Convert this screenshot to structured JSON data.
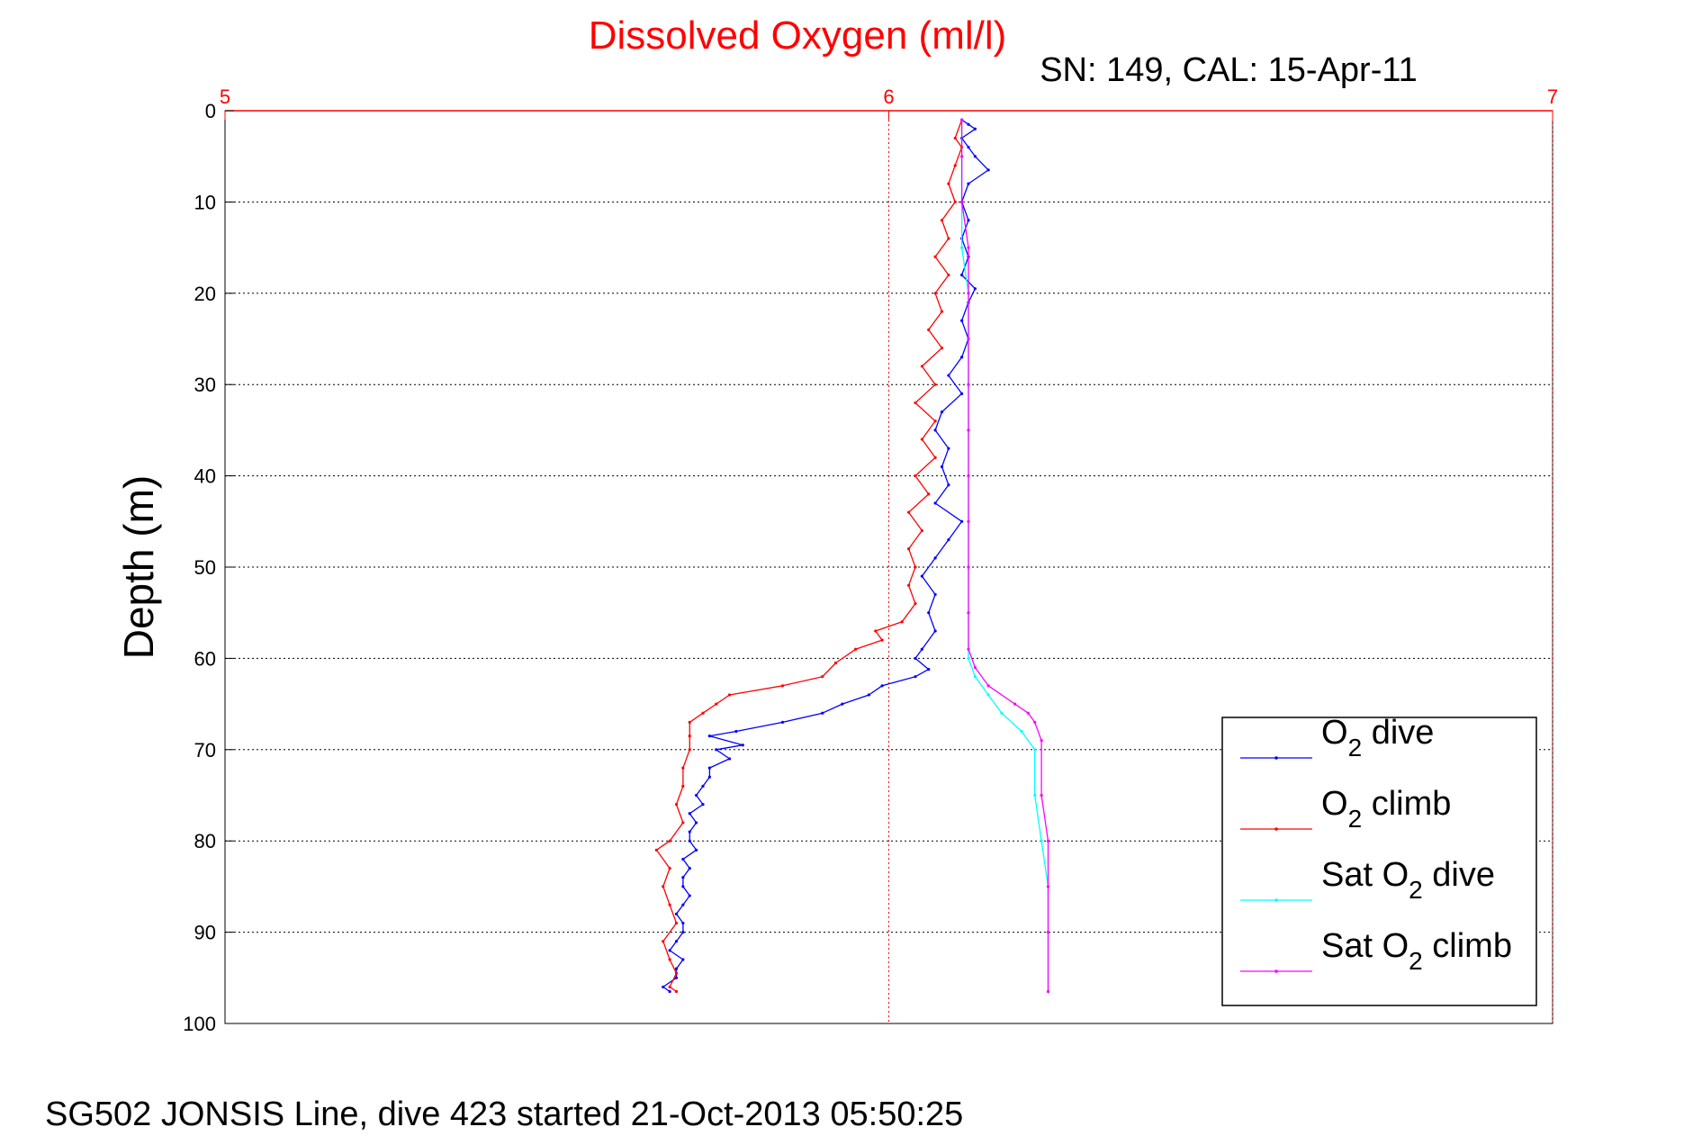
{
  "chart_data": {
    "type": "line",
    "title": "Dissolved Oxygen (ml/l)",
    "subtitle": "SN: 149, CAL: 15-Apr-11",
    "ylabel": "Depth (m)",
    "xlim": [
      5,
      7
    ],
    "ylim": [
      0,
      100
    ],
    "y_reversed": true,
    "x_axis_position": "top",
    "x_ticks": [
      "5",
      "6",
      "7"
    ],
    "y_ticks": [
      "0",
      "10",
      "20",
      "30",
      "40",
      "50",
      "60",
      "70",
      "80",
      "90",
      "100"
    ],
    "grid": true,
    "legend_position": "bottom-right",
    "footer": "SG502 JONSIS Line, dive 423 started 21-Oct-2013 05:50:25",
    "colors": {
      "title": "#ff0000",
      "x_axis": "#ff0000",
      "o2_dive": "#0000ff",
      "o2_climb": "#ff0000",
      "sat_o2_dive": "#00ffff",
      "sat_o2_climb": "#ff00ff"
    },
    "series": [
      {
        "key": "o2_dive",
        "legend_main": "O",
        "legend_sub": "2",
        "legend_rest": " dive",
        "color": "#0000ff",
        "points": [
          [
            6.11,
            1
          ],
          [
            6.12,
            1.5
          ],
          [
            6.13,
            2
          ],
          [
            6.11,
            3
          ],
          [
            6.12,
            4
          ],
          [
            6.13,
            5
          ],
          [
            6.15,
            6.5
          ],
          [
            6.12,
            8
          ],
          [
            6.11,
            10
          ],
          [
            6.12,
            12
          ],
          [
            6.11,
            14
          ],
          [
            6.12,
            16
          ],
          [
            6.11,
            18
          ],
          [
            6.13,
            19.5
          ],
          [
            6.12,
            21
          ],
          [
            6.11,
            23
          ],
          [
            6.12,
            25
          ],
          [
            6.11,
            27
          ],
          [
            6.09,
            29
          ],
          [
            6.11,
            31
          ],
          [
            6.08,
            33
          ],
          [
            6.07,
            35
          ],
          [
            6.09,
            37
          ],
          [
            6.08,
            39
          ],
          [
            6.09,
            41
          ],
          [
            6.07,
            43
          ],
          [
            6.11,
            45
          ],
          [
            6.09,
            47
          ],
          [
            6.07,
            49
          ],
          [
            6.05,
            51
          ],
          [
            6.07,
            53
          ],
          [
            6.06,
            55
          ],
          [
            6.07,
            57
          ],
          [
            6.05,
            59
          ],
          [
            6.04,
            60
          ],
          [
            6.06,
            61.2
          ],
          [
            6.04,
            62
          ],
          [
            5.99,
            63
          ],
          [
            5.97,
            64
          ],
          [
            5.93,
            65
          ],
          [
            5.9,
            66
          ],
          [
            5.84,
            67
          ],
          [
            5.77,
            68
          ],
          [
            5.73,
            68.5
          ],
          [
            5.78,
            69.5
          ],
          [
            5.74,
            70
          ],
          [
            5.76,
            71
          ],
          [
            5.73,
            72
          ],
          [
            5.73,
            73
          ],
          [
            5.72,
            74
          ],
          [
            5.71,
            75
          ],
          [
            5.72,
            76
          ],
          [
            5.7,
            77
          ],
          [
            5.71,
            78
          ],
          [
            5.7,
            79
          ],
          [
            5.7,
            80
          ],
          [
            5.71,
            81
          ],
          [
            5.69,
            82
          ],
          [
            5.7,
            83
          ],
          [
            5.69,
            84
          ],
          [
            5.69,
            85
          ],
          [
            5.7,
            86
          ],
          [
            5.69,
            87
          ],
          [
            5.68,
            88
          ],
          [
            5.69,
            89
          ],
          [
            5.69,
            90
          ],
          [
            5.68,
            91
          ],
          [
            5.67,
            92
          ],
          [
            5.69,
            93
          ],
          [
            5.68,
            94
          ],
          [
            5.68,
            95
          ],
          [
            5.66,
            96
          ],
          [
            5.67,
            96.5
          ]
        ]
      },
      {
        "key": "o2_climb",
        "legend_main": "O",
        "legend_sub": "2",
        "legend_rest": " climb",
        "color": "#ff0000",
        "points": [
          [
            6.11,
            1
          ],
          [
            6.1,
            3
          ],
          [
            6.11,
            4
          ],
          [
            6.1,
            6
          ],
          [
            6.09,
            8
          ],
          [
            6.1,
            10
          ],
          [
            6.08,
            12
          ],
          [
            6.09,
            14
          ],
          [
            6.07,
            16
          ],
          [
            6.09,
            18
          ],
          [
            6.07,
            20
          ],
          [
            6.08,
            22
          ],
          [
            6.06,
            24
          ],
          [
            6.08,
            26
          ],
          [
            6.05,
            28
          ],
          [
            6.07,
            30
          ],
          [
            6.04,
            32
          ],
          [
            6.07,
            34
          ],
          [
            6.05,
            36
          ],
          [
            6.07,
            38
          ],
          [
            6.04,
            40
          ],
          [
            6.06,
            42
          ],
          [
            6.03,
            44
          ],
          [
            6.05,
            46
          ],
          [
            6.03,
            48
          ],
          [
            6.04,
            50
          ],
          [
            6.03,
            52
          ],
          [
            6.04,
            54
          ],
          [
            6.02,
            56
          ],
          [
            5.98,
            57
          ],
          [
            5.99,
            58
          ],
          [
            5.95,
            59
          ],
          [
            5.92,
            60.5
          ],
          [
            5.9,
            62
          ],
          [
            5.84,
            63
          ],
          [
            5.76,
            64
          ],
          [
            5.74,
            65
          ],
          [
            5.72,
            66
          ],
          [
            5.7,
            67
          ],
          [
            5.7,
            68.5
          ],
          [
            5.7,
            70
          ],
          [
            5.69,
            72
          ],
          [
            5.69,
            74
          ],
          [
            5.68,
            76
          ],
          [
            5.69,
            78
          ],
          [
            5.67,
            80
          ],
          [
            5.65,
            81
          ],
          [
            5.67,
            83
          ],
          [
            5.66,
            85
          ],
          [
            5.67,
            87
          ],
          [
            5.68,
            89
          ],
          [
            5.66,
            91
          ],
          [
            5.67,
            93
          ],
          [
            5.68,
            94.5
          ],
          [
            5.67,
            96
          ],
          [
            5.68,
            96.5
          ]
        ]
      },
      {
        "key": "sat_o2_dive",
        "legend_main": "Sat O",
        "legend_sub": "2",
        "legend_rest": " dive",
        "color": "#00ffff",
        "points": [
          [
            6.11,
            1
          ],
          [
            6.11,
            5
          ],
          [
            6.11,
            10
          ],
          [
            6.11,
            15
          ],
          [
            6.12,
            20
          ],
          [
            6.12,
            25
          ],
          [
            6.12,
            30
          ],
          [
            6.12,
            35
          ],
          [
            6.12,
            40
          ],
          [
            6.12,
            45
          ],
          [
            6.12,
            50
          ],
          [
            6.12,
            55
          ],
          [
            6.12,
            60
          ],
          [
            6.13,
            62
          ],
          [
            6.15,
            64
          ],
          [
            6.17,
            66
          ],
          [
            6.2,
            68
          ],
          [
            6.22,
            70
          ],
          [
            6.22,
            75
          ],
          [
            6.23,
            80
          ],
          [
            6.24,
            85
          ],
          [
            6.24,
            90
          ],
          [
            6.24,
            96.5
          ]
        ]
      },
      {
        "key": "sat_o2_climb",
        "legend_main": "Sat O",
        "legend_sub": "2",
        "legend_rest": " climb",
        "color": "#ff00ff",
        "points": [
          [
            6.11,
            1
          ],
          [
            6.11,
            5
          ],
          [
            6.11,
            10
          ],
          [
            6.12,
            15
          ],
          [
            6.12,
            20
          ],
          [
            6.12,
            25
          ],
          [
            6.12,
            30
          ],
          [
            6.12,
            35
          ],
          [
            6.12,
            40
          ],
          [
            6.12,
            45
          ],
          [
            6.12,
            50
          ],
          [
            6.12,
            55
          ],
          [
            6.12,
            59
          ],
          [
            6.13,
            61
          ],
          [
            6.15,
            63
          ],
          [
            6.19,
            65
          ],
          [
            6.21,
            66
          ],
          [
            6.22,
            67
          ],
          [
            6.23,
            69
          ],
          [
            6.23,
            75
          ],
          [
            6.24,
            80
          ],
          [
            6.24,
            85
          ],
          [
            6.24,
            90
          ],
          [
            6.24,
            96.5
          ]
        ]
      }
    ]
  }
}
